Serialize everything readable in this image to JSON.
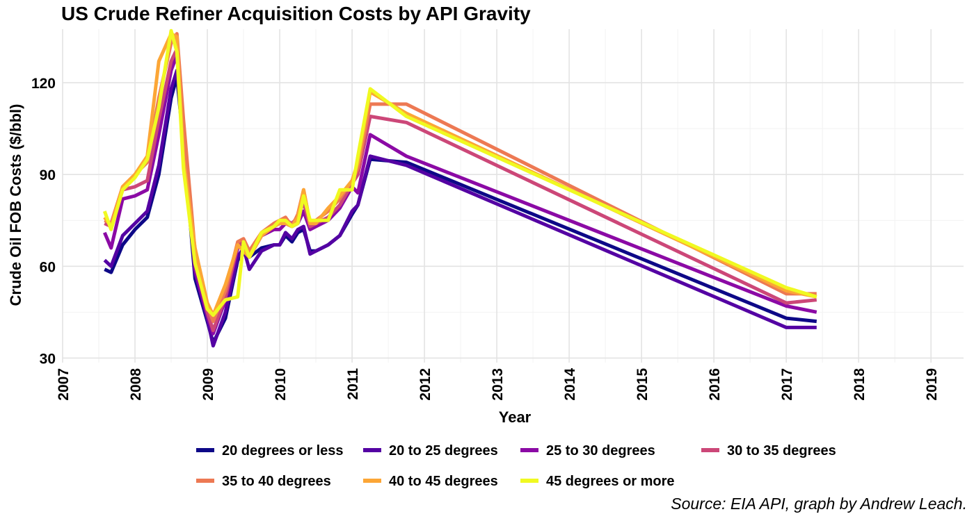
{
  "chart_data": {
    "type": "line",
    "title": "US Crude Refiner Acquisition Costs by API Gravity",
    "xlabel": "Year",
    "ylabel": "Crude Oil FOB Costs ($/bbl)",
    "caption": "Source: EIA API, graph by Andrew Leach.",
    "xlim": [
      2007.0,
      2019.45
    ],
    "ylim": [
      28.5,
      137.5
    ],
    "x_ticks": [
      2007,
      2008,
      2009,
      2010,
      2011,
      2012,
      2013,
      2014,
      2015,
      2016,
      2017,
      2018,
      2019
    ],
    "y_ticks": [
      30,
      60,
      90,
      120
    ],
    "grid": true,
    "legend_position": "bottom",
    "series": [
      {
        "name": "20 degrees or less",
        "color": "#0d0887",
        "x": [
          2007.58,
          2007.67,
          2007.83,
          2008.0,
          2008.17,
          2008.33,
          2008.5,
          2008.58,
          2008.67,
          2008.83,
          2009.0,
          2009.08,
          2009.25,
          2009.42,
          2009.5,
          2009.58,
          2009.75,
          2009.92,
          2010.0,
          2010.08,
          2010.17,
          2010.25,
          2010.33,
          2010.42,
          2010.5,
          2010.67,
          2010.83,
          2011.0,
          2011.08,
          2011.25,
          2011.75,
          2017.0,
          2017.42
        ],
        "y": [
          59,
          58,
          67,
          72,
          76,
          90,
          115,
          122,
          100,
          56,
          42,
          35,
          43,
          62,
          64,
          63,
          66,
          67,
          67,
          70,
          68,
          71,
          72,
          65,
          65,
          67,
          70,
          77,
          80,
          95,
          94,
          43,
          42
        ]
      },
      {
        "name": "20 to 25 degrees",
        "color": "#5402a3",
        "x": [
          2007.58,
          2007.67,
          2007.83,
          2008.0,
          2008.17,
          2008.33,
          2008.5,
          2008.58,
          2008.67,
          2008.83,
          2009.0,
          2009.08,
          2009.25,
          2009.42,
          2009.5,
          2009.58,
          2009.75,
          2009.92,
          2010.0,
          2010.08,
          2010.17,
          2010.25,
          2010.33,
          2010.42,
          2010.5,
          2010.67,
          2010.83,
          2011.0,
          2011.08,
          2011.25,
          2011.75,
          2017.0,
          2017.42
        ],
        "y": [
          62,
          60,
          70,
          74,
          78,
          93,
          118,
          124,
          102,
          58,
          43,
          34,
          45,
          63,
          66,
          59,
          65,
          67,
          67,
          71,
          69,
          72,
          73,
          64,
          65,
          67,
          70,
          78,
          80,
          96,
          93,
          40,
          40
        ]
      },
      {
        "name": "25 to 30 degrees",
        "color": "#8b0aa5",
        "x": [
          2007.58,
          2007.67,
          2007.83,
          2008.0,
          2008.17,
          2008.33,
          2008.5,
          2008.58,
          2008.67,
          2008.83,
          2009.0,
          2009.08,
          2009.25,
          2009.42,
          2009.5,
          2009.58,
          2009.75,
          2009.92,
          2010.0,
          2010.08,
          2010.17,
          2010.25,
          2010.33,
          2010.42,
          2010.5,
          2010.67,
          2010.83,
          2011.0,
          2011.08,
          2011.25,
          2011.75,
          2017.0,
          2017.42
        ],
        "y": [
          71,
          66,
          82,
          83,
          85,
          103,
          124,
          129,
          105,
          59,
          44,
          38,
          49,
          66,
          67,
          63,
          70,
          72,
          72,
          74,
          73,
          74,
          78,
          72,
          73,
          75,
          79,
          86,
          84,
          103,
          96,
          47,
          45
        ]
      },
      {
        "name": "30 to 35 degrees",
        "color": "#cc4778",
        "x": [
          2007.58,
          2007.67,
          2007.83,
          2008.0,
          2008.17,
          2008.33,
          2008.5,
          2008.58,
          2008.67,
          2008.83,
          2009.0,
          2009.08,
          2009.25,
          2009.42,
          2009.5,
          2009.58,
          2009.75,
          2009.92,
          2010.0,
          2010.08,
          2010.17,
          2010.25,
          2010.33,
          2010.42,
          2010.5,
          2010.67,
          2010.83,
          2011.0,
          2011.08,
          2011.25,
          2011.75,
          2017.0,
          2017.42
        ],
        "y": [
          74,
          73,
          85,
          86,
          88,
          108,
          127,
          131,
          106,
          62,
          45,
          39,
          50,
          67,
          68,
          64,
          71,
          73,
          74,
          75,
          74,
          76,
          81,
          73,
          74,
          76,
          80,
          87,
          90,
          109,
          107,
          48,
          49
        ]
      },
      {
        "name": "35 to 40 degrees",
        "color": "#ed7953",
        "x": [
          2007.58,
          2007.67,
          2007.83,
          2008.0,
          2008.17,
          2008.33,
          2008.5,
          2008.58,
          2008.67,
          2008.83,
          2009.0,
          2009.08,
          2009.25,
          2009.42,
          2009.5,
          2009.58,
          2009.75,
          2009.92,
          2010.0,
          2010.08,
          2010.17,
          2010.25,
          2010.33,
          2010.42,
          2010.5,
          2010.67,
          2010.83,
          2011.0,
          2011.08,
          2011.25,
          2011.75,
          2017.0,
          2017.42
        ],
        "y": [
          75,
          74,
          86,
          90,
          94,
          115,
          133,
          136,
          108,
          65,
          47,
          42,
          52,
          68,
          69,
          65,
          71,
          74,
          75,
          76,
          73,
          77,
          85,
          74,
          75,
          78,
          82,
          88,
          92,
          113,
          113,
          51,
          51
        ]
      },
      {
        "name": "40 to 45 degrees",
        "color": "#fca636",
        "x": [
          2007.58,
          2007.67,
          2007.83,
          2008.0,
          2008.17,
          2008.33,
          2008.5,
          2008.58,
          2008.67,
          2008.83,
          2009.0,
          2009.08,
          2009.25,
          2009.42,
          2009.5,
          2009.58,
          2009.75,
          2009.92,
          2010.0,
          2010.08,
          2010.17,
          2010.25,
          2010.33,
          2010.42,
          2010.5,
          2010.67,
          2010.83,
          2011.0,
          2011.08,
          2011.25,
          2011.75,
          2017.0,
          2017.42
        ],
        "y": [
          76,
          73,
          86,
          90,
          96,
          127,
          136,
          135,
          95,
          66,
          48,
          44,
          54,
          67,
          65,
          63,
          70,
          73,
          74,
          74,
          73,
          76,
          85,
          74,
          74,
          79,
          83,
          88,
          94,
          117,
          110,
          52,
          50
        ]
      },
      {
        "name": "45 degrees or more",
        "color": "#f0f921",
        "x": [
          2007.58,
          2007.67,
          2007.83,
          2008.0,
          2008.17,
          2008.33,
          2008.5,
          2008.58,
          2008.67,
          2008.83,
          2009.0,
          2009.08,
          2009.25,
          2009.42,
          2009.5,
          2009.58,
          2009.75,
          2009.92,
          2010.0,
          2010.08,
          2010.17,
          2010.25,
          2010.33,
          2010.42,
          2010.5,
          2010.67,
          2010.83,
          2011.0,
          2011.08,
          2011.25,
          2011.75,
          2017.0,
          2017.42
        ],
        "y": [
          78,
          72,
          85,
          89,
          95,
          112,
          137,
          130,
          92,
          61,
          46,
          44,
          49,
          50,
          68,
          63,
          71,
          73,
          75,
          75,
          73,
          74,
          83,
          75,
          75,
          75,
          85,
          85,
          96,
          118,
          109,
          53,
          50
        ]
      }
    ]
  }
}
